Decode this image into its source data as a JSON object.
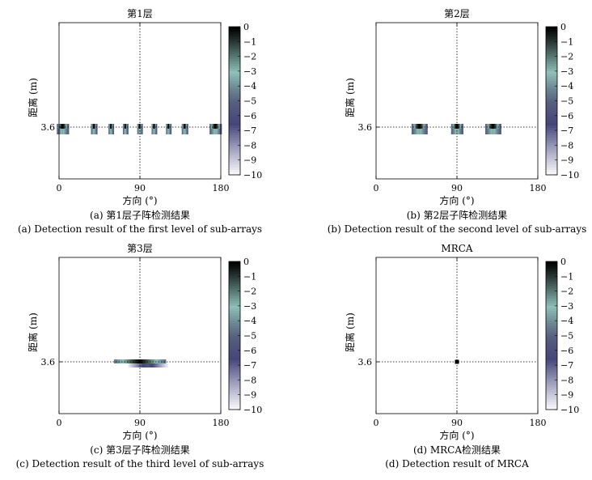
{
  "chart_data": [
    {
      "type": "heatmap",
      "title": "第1层",
      "xlabel": "方向 (°)",
      "ylabel": "距离 (m)",
      "xlim": [
        0,
        180
      ],
      "xticks": [
        "0",
        "90",
        "180"
      ],
      "yticks": [
        "3.6"
      ],
      "reference_lines": {
        "x": 90,
        "y": 3.6
      },
      "colorbar": {
        "range": [
          -10,
          0
        ],
        "ticks": [
          "0",
          "−1",
          "−2",
          "−3",
          "−4",
          "−5",
          "−6",
          "−7",
          "−8",
          "−9",
          "−10"
        ]
      },
      "peaks": [
        {
          "angle": 4,
          "width": 12,
          "level": 0
        },
        {
          "angle": 39,
          "width": 6,
          "level": 0
        },
        {
          "angle": 58,
          "width": 5,
          "level": 0
        },
        {
          "angle": 74,
          "width": 5,
          "level": 0
        },
        {
          "angle": 90,
          "width": 5,
          "level": 0
        },
        {
          "angle": 106,
          "width": 5,
          "level": 0
        },
        {
          "angle": 122,
          "width": 5,
          "level": 0
        },
        {
          "angle": 140,
          "width": 6,
          "level": 0
        },
        {
          "angle": 174,
          "width": 12,
          "level": 0
        }
      ],
      "caption_cn": "(a) 第1层子阵检测结果",
      "caption_en": "(a) Detection result of the first level of sub-arrays"
    },
    {
      "type": "heatmap",
      "title": "第2层",
      "xlabel": "方向 (°)",
      "ylabel": "距离 (m)",
      "xlim": [
        0,
        180
      ],
      "xticks": [
        "0",
        "90",
        "180"
      ],
      "yticks": [
        "3.6"
      ],
      "reference_lines": {
        "x": 90,
        "y": 3.6
      },
      "colorbar": {
        "range": [
          -10,
          0
        ],
        "ticks": [
          "0",
          "−1",
          "−2",
          "−3",
          "−4",
          "−5",
          "−6",
          "−7",
          "−8",
          "−9",
          "−10"
        ]
      },
      "peaks": [
        {
          "angle": 48,
          "width": 16,
          "level": 0
        },
        {
          "angle": 90,
          "width": 12,
          "level": 0
        },
        {
          "angle": 130,
          "width": 16,
          "level": 0
        }
      ],
      "caption_cn": "(b) 第2层子阵检测结果",
      "caption_en": "(b) Detection result of the second level of sub-arrays"
    },
    {
      "type": "heatmap",
      "title": "第3层",
      "xlabel": "方向 (°)",
      "ylabel": "距离 (m)",
      "xlim": [
        0,
        180
      ],
      "xticks": [
        "0",
        "90",
        "180"
      ],
      "yticks": [
        "3.6"
      ],
      "reference_lines": {
        "x": 90,
        "y": 3.6
      },
      "colorbar": {
        "range": [
          -10,
          0
        ],
        "ticks": [
          "0",
          "−1",
          "−2",
          "−3",
          "−4",
          "−5",
          "−6",
          "−7",
          "−8",
          "−9",
          "−10"
        ]
      },
      "peaks": [
        {
          "angle": 90,
          "width": 56,
          "level": 0,
          "spread": true
        }
      ],
      "caption_cn": "(c) 第3层子阵检测结果",
      "caption_en": "(c) Detection result of the third level of sub-arrays"
    },
    {
      "type": "heatmap",
      "title": "MRCA",
      "xlabel": "方向 (°)",
      "ylabel": "距离 (m)",
      "xlim": [
        0,
        180
      ],
      "xticks": [
        "0",
        "90",
        "180"
      ],
      "yticks": [
        "3.6"
      ],
      "reference_lines": {
        "x": 90,
        "y": 3.6
      },
      "colorbar": {
        "range": [
          -10,
          0
        ],
        "ticks": [
          "0",
          "−1",
          "−2",
          "−3",
          "−4",
          "−5",
          "−6",
          "−7",
          "−8",
          "−9",
          "−10"
        ]
      },
      "peaks": [
        {
          "angle": 90,
          "width": 3,
          "level": 0,
          "point": true
        }
      ],
      "caption_cn": "(d) MRCA检测结果",
      "caption_en": "(d) Detection result of MRCA"
    }
  ],
  "colormap": {
    "stops": [
      [
        0,
        "#000000"
      ],
      [
        -1,
        "#2b3b37"
      ],
      [
        -2,
        "#5a7d78"
      ],
      [
        -3,
        "#8fbfb8"
      ],
      [
        -4,
        "#6e8c95"
      ],
      [
        -5,
        "#56607f"
      ],
      [
        -6.5,
        "#45457a"
      ],
      [
        -8,
        "#9898b8"
      ],
      [
        -10,
        "#ffffff"
      ]
    ]
  }
}
